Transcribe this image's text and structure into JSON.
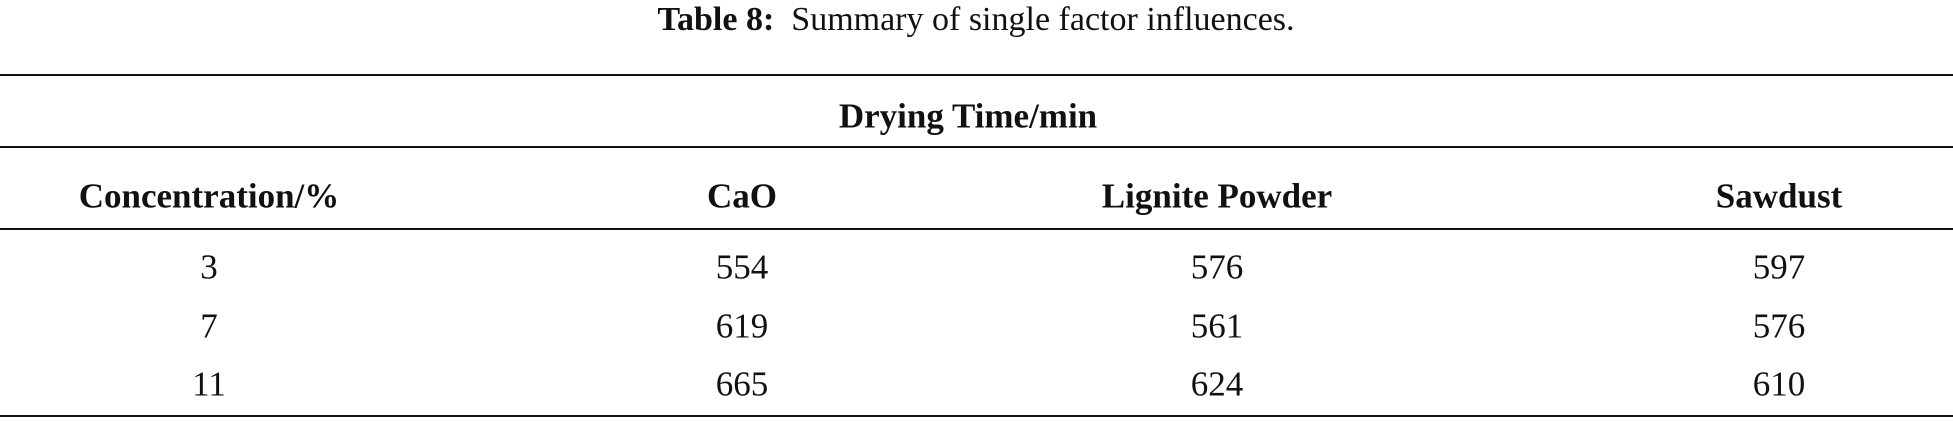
{
  "caption": {
    "label": "Table 8:",
    "text": "Summary of single factor influences."
  },
  "table": {
    "group_header": "Drying Time/min",
    "headers": [
      "Concentration/%",
      "CaO",
      "Lignite Powder",
      "Sawdust"
    ],
    "rows": [
      [
        3,
        554,
        576,
        597
      ],
      [
        7,
        619,
        561,
        576
      ],
      [
        11,
        665,
        624,
        610
      ]
    ]
  }
}
